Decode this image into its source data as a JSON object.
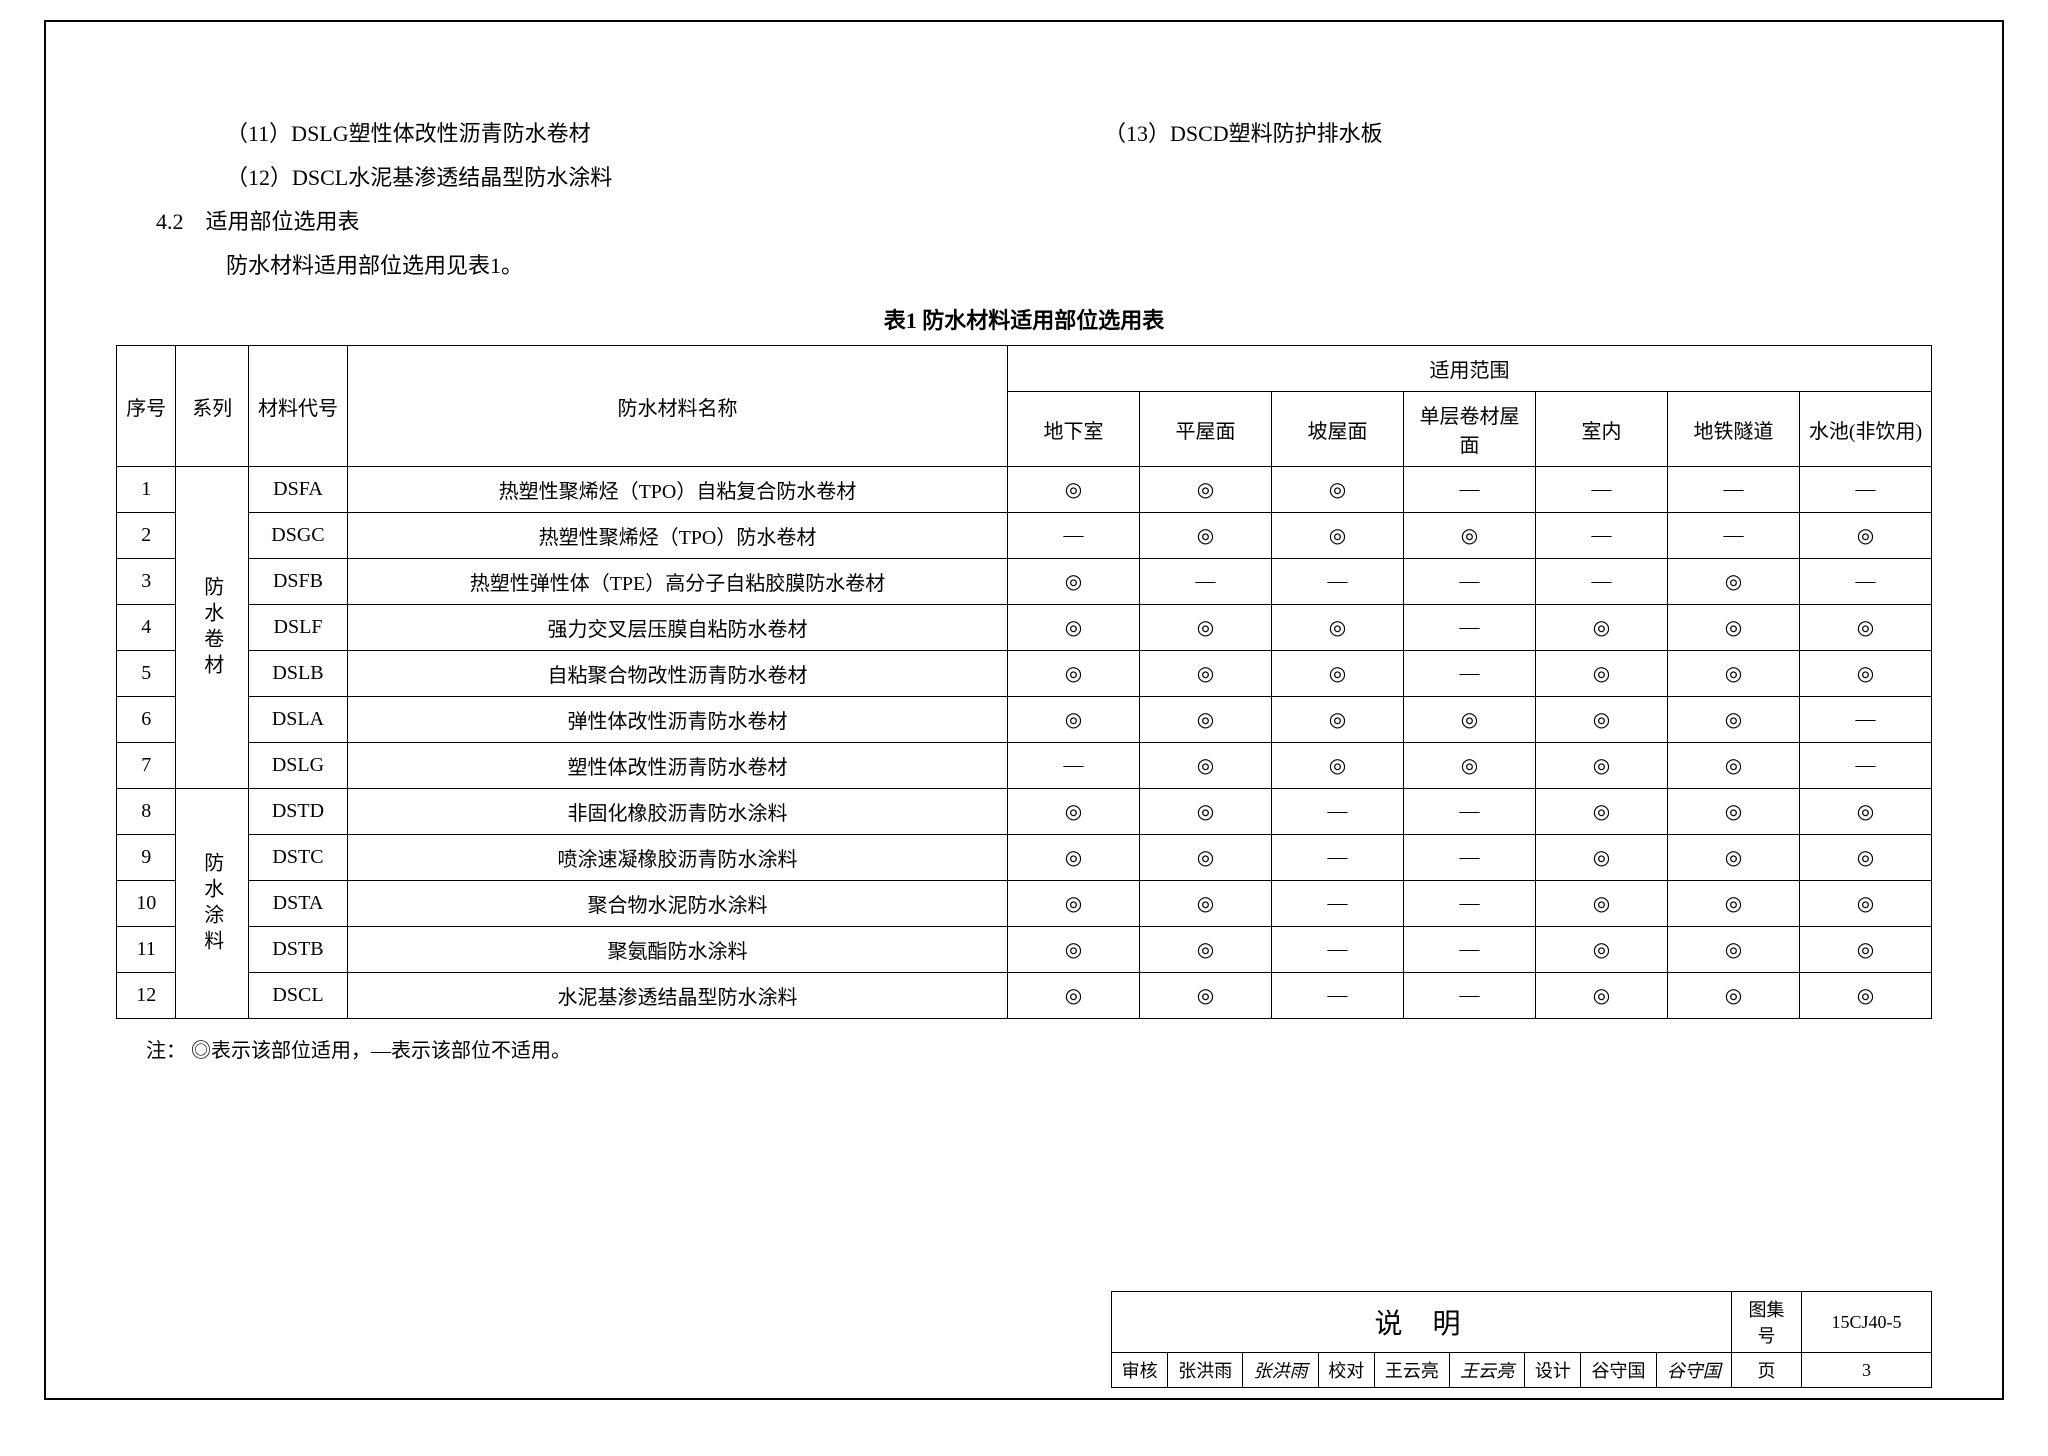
{
  "upper": {
    "item11": "（11）DSLG塑性体改性沥青防水卷材",
    "item12": "（12）DSCL水泥基渗透结晶型防水涂料",
    "item13": "（13）DSCD塑料防护排水板",
    "section": "4.2　适用部位选用表",
    "subtext": "防水材料适用部位选用见表1。"
  },
  "tableTitle": "表1  防水材料适用部位选用表",
  "headers": {
    "seq": "序号",
    "series": "系列",
    "code": "材料代号",
    "name": "防水材料名称",
    "range": "适用范围",
    "cols": [
      "地下室",
      "平屋面",
      "坡屋面",
      "单层卷材屋面",
      "室内",
      "地铁隧道",
      "水池(非饮用)"
    ]
  },
  "series": {
    "g1": "防水卷材",
    "g2": "防水涂料"
  },
  "rows": [
    {
      "n": "1",
      "code": "DSFA",
      "name": "热塑性聚烯烃（TPO）自粘复合防水卷材",
      "v": [
        "◎",
        "◎",
        "◎",
        "—",
        "—",
        "—",
        "—"
      ]
    },
    {
      "n": "2",
      "code": "DSGC",
      "name": "热塑性聚烯烃（TPO）防水卷材",
      "v": [
        "—",
        "◎",
        "◎",
        "◎",
        "—",
        "—",
        "◎"
      ]
    },
    {
      "n": "3",
      "code": "DSFB",
      "name": "热塑性弹性体（TPE）高分子自粘胶膜防水卷材",
      "v": [
        "◎",
        "—",
        "—",
        "—",
        "—",
        "◎",
        "—"
      ]
    },
    {
      "n": "4",
      "code": "DSLF",
      "name": "强力交叉层压膜自粘防水卷材",
      "v": [
        "◎",
        "◎",
        "◎",
        "—",
        "◎",
        "◎",
        "◎"
      ]
    },
    {
      "n": "5",
      "code": "DSLB",
      "name": "自粘聚合物改性沥青防水卷材",
      "v": [
        "◎",
        "◎",
        "◎",
        "—",
        "◎",
        "◎",
        "◎"
      ]
    },
    {
      "n": "6",
      "code": "DSLA",
      "name": "弹性体改性沥青防水卷材",
      "v": [
        "◎",
        "◎",
        "◎",
        "◎",
        "◎",
        "◎",
        "—"
      ]
    },
    {
      "n": "7",
      "code": "DSLG",
      "name": "塑性体改性沥青防水卷材",
      "v": [
        "—",
        "◎",
        "◎",
        "◎",
        "◎",
        "◎",
        "—"
      ]
    },
    {
      "n": "8",
      "code": "DSTD",
      "name": "非固化橡胶沥青防水涂料",
      "v": [
        "◎",
        "◎",
        "—",
        "—",
        "◎",
        "◎",
        "◎"
      ]
    },
    {
      "n": "9",
      "code": "DSTC",
      "name": "喷涂速凝橡胶沥青防水涂料",
      "v": [
        "◎",
        "◎",
        "—",
        "—",
        "◎",
        "◎",
        "◎"
      ]
    },
    {
      "n": "10",
      "code": "DSTA",
      "name": "聚合物水泥防水涂料",
      "v": [
        "◎",
        "◎",
        "—",
        "—",
        "◎",
        "◎",
        "◎"
      ]
    },
    {
      "n": "11",
      "code": "DSTB",
      "name": "聚氨酯防水涂料",
      "v": [
        "◎",
        "◎",
        "—",
        "—",
        "◎",
        "◎",
        "◎"
      ]
    },
    {
      "n": "12",
      "code": "DSCL",
      "name": "水泥基渗透结晶型防水涂料",
      "v": [
        "◎",
        "◎",
        "—",
        "—",
        "◎",
        "◎",
        "◎"
      ]
    }
  ],
  "note": "注：  ◎表示该部位适用，—表示该部位不适用。",
  "titleBlock": {
    "title": "说明",
    "atlasLabel": "图集号",
    "atlasNum": "15CJ40-5",
    "review": "审核",
    "reviewer": "张洪雨",
    "reviewerSig": "张洪雨",
    "check": "校对",
    "checker": "王云亮",
    "checkerSig": "王云亮",
    "design": "设计",
    "designer": "谷守国",
    "designerSig": "谷守国",
    "pageLabel": "页",
    "pageNum": "3"
  }
}
